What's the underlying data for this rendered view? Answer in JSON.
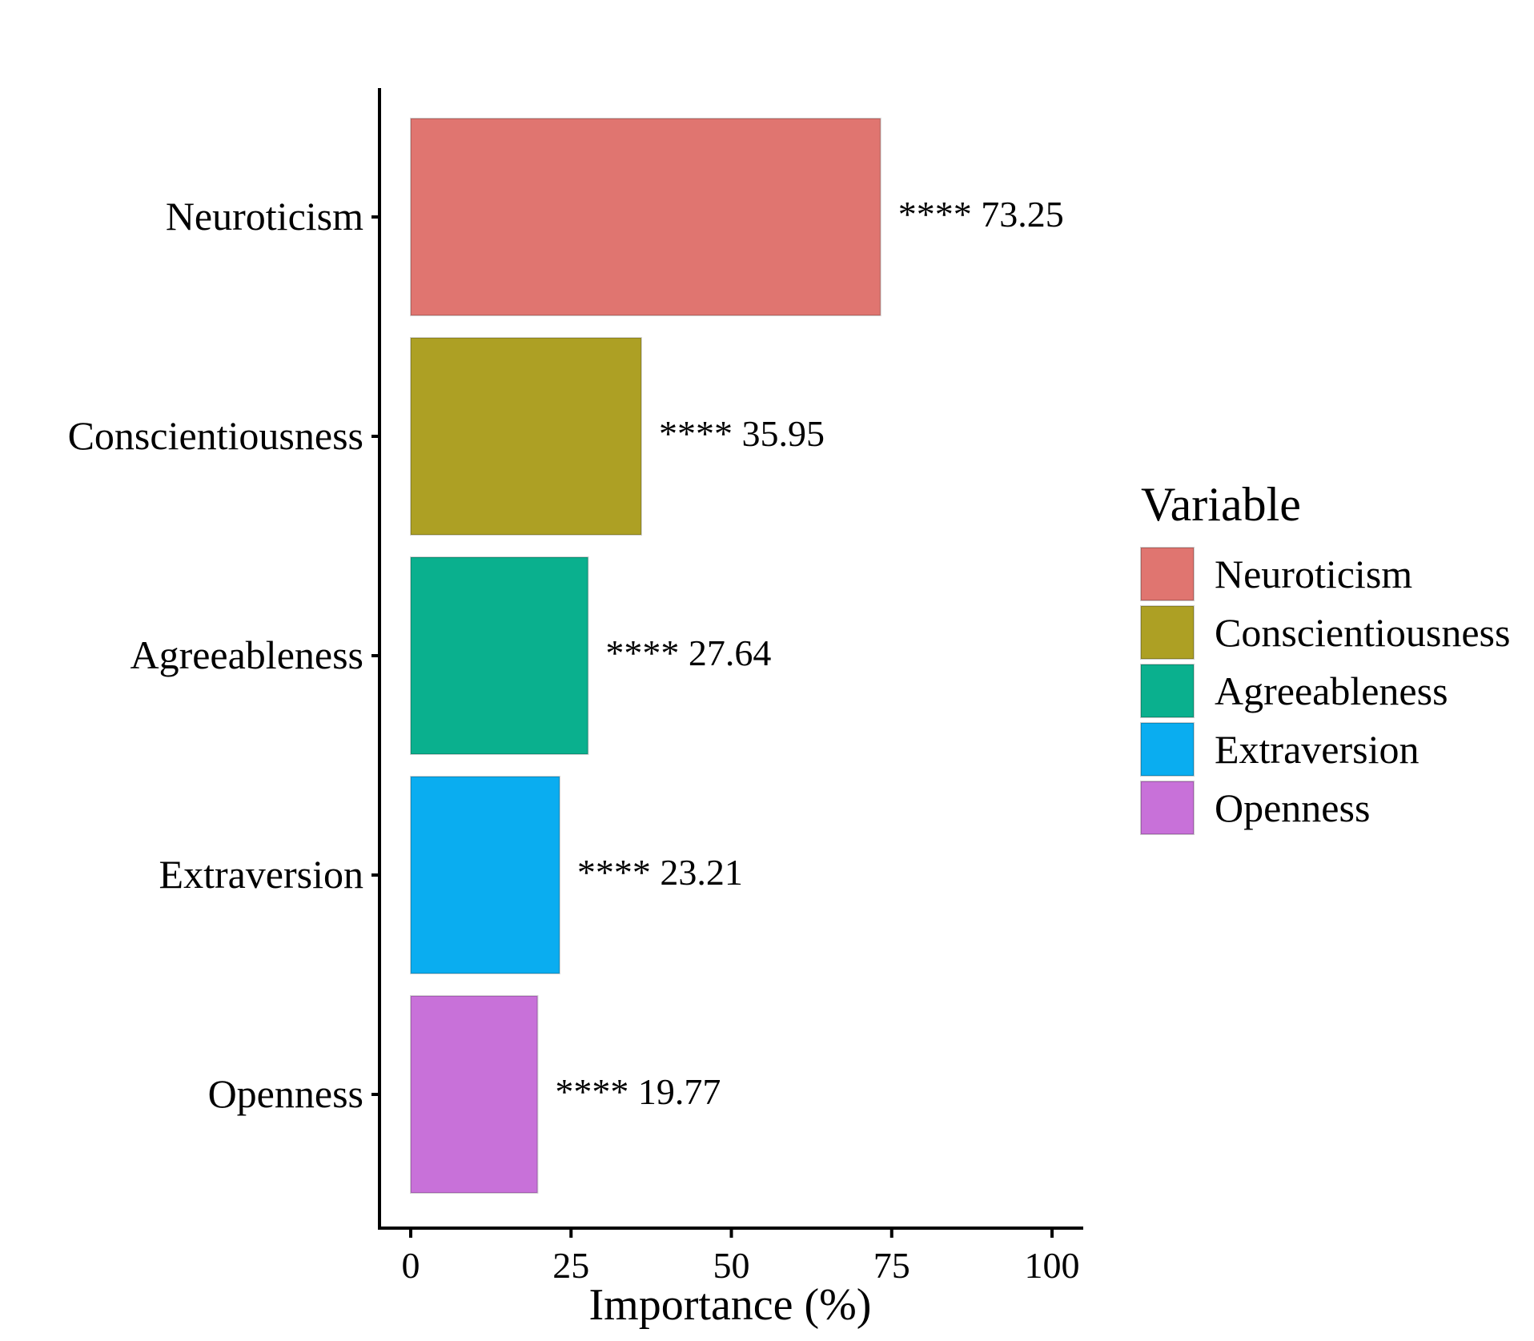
{
  "chart_data": {
    "type": "bar",
    "orientation": "horizontal",
    "categories": [
      "Neuroticism",
      "Conscientiousness",
      "Agreeableness",
      "Extraversion",
      "Openness"
    ],
    "values": [
      73.25,
      35.95,
      27.64,
      23.21,
      19.77
    ],
    "value_labels": [
      "**** 73.25",
      "**** 35.95",
      "**** 27.64",
      "**** 23.21",
      "**** 19.77"
    ],
    "colors": [
      "#E07570",
      "#ADA024",
      "#0AB08E",
      "#0AADF0",
      "#C871D9"
    ],
    "xlabel": "Importance (%)",
    "ylabel": "",
    "xlim": [
      0,
      100
    ],
    "xticks": [
      0,
      25,
      50,
      75,
      100
    ],
    "xtick_labels": [
      "0",
      "25",
      "50",
      "75",
      "100"
    ],
    "grid": false,
    "legend": {
      "title": "Variable",
      "position": "right",
      "entries": [
        "Neuroticism",
        "Conscientiousness",
        "Agreeableness",
        "Extraversion",
        "Openness"
      ]
    }
  }
}
